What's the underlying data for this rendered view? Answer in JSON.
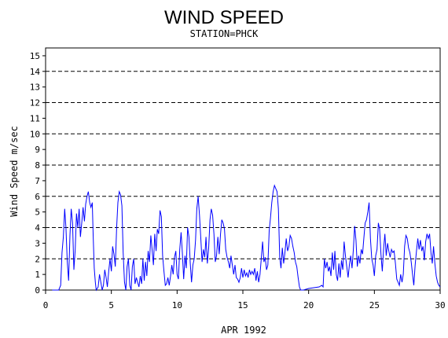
{
  "chart_data": {
    "type": "line",
    "title": "WIND SPEED",
    "subtitle": "STATION=PHCK",
    "xlabel": "APR 1992",
    "ylabel": "Wind Speed m/sec",
    "xlim": [
      0,
      30
    ],
    "ylim": [
      0,
      15.5
    ],
    "x_ticks": [
      0,
      5,
      10,
      15,
      20,
      25,
      30
    ],
    "y_ticks": [
      0,
      1,
      2,
      3,
      4,
      5,
      6,
      7,
      8,
      9,
      10,
      11,
      12,
      13,
      14,
      15
    ],
    "grid_y_dashed": [
      2,
      4,
      6,
      8,
      10,
      12,
      14
    ],
    "colors": {
      "line": "#0000ff",
      "axis": "#000000",
      "grid": "#000000"
    },
    "series": [
      {
        "values": [
          [
            0.5,
            0
          ],
          [
            1.0,
            0
          ],
          [
            1.15,
            0.3
          ],
          [
            1.25,
            2.4
          ],
          [
            1.35,
            3.4
          ],
          [
            1.45,
            5.2
          ],
          [
            1.55,
            4.0
          ],
          [
            1.65,
            1.8
          ],
          [
            1.75,
            0.6
          ],
          [
            1.85,
            3.5
          ],
          [
            1.95,
            5.2
          ],
          [
            2.05,
            4.3
          ],
          [
            2.15,
            1.3
          ],
          [
            2.25,
            2.6
          ],
          [
            2.35,
            4.9
          ],
          [
            2.45,
            4.0
          ],
          [
            2.55,
            5.2
          ],
          [
            2.65,
            3.4
          ],
          [
            2.75,
            4.3
          ],
          [
            2.85,
            5.3
          ],
          [
            2.95,
            4.4
          ],
          [
            3.05,
            5.5
          ],
          [
            3.15,
            6.0
          ],
          [
            3.25,
            6.3
          ],
          [
            3.35,
            5.6
          ],
          [
            3.45,
            5.3
          ],
          [
            3.55,
            5.6
          ],
          [
            3.62,
            3.4
          ],
          [
            3.7,
            1.4
          ],
          [
            3.78,
            0.5
          ],
          [
            3.85,
            0
          ],
          [
            4.0,
            0.2
          ],
          [
            4.1,
            1.0
          ],
          [
            4.2,
            0.5
          ],
          [
            4.3,
            0
          ],
          [
            4.4,
            0.3
          ],
          [
            4.5,
            1.3
          ],
          [
            4.6,
            0.8
          ],
          [
            4.7,
            0.2
          ],
          [
            4.8,
            1.2
          ],
          [
            4.9,
            2.0
          ],
          [
            5.0,
            1.2
          ],
          [
            5.1,
            2.8
          ],
          [
            5.2,
            2.3
          ],
          [
            5.3,
            1.5
          ],
          [
            5.4,
            4.0
          ],
          [
            5.5,
            5.6
          ],
          [
            5.6,
            6.3
          ],
          [
            5.7,
            6.1
          ],
          [
            5.8,
            5.4
          ],
          [
            5.9,
            2.4
          ],
          [
            6.0,
            0.5
          ],
          [
            6.1,
            0
          ],
          [
            6.2,
            1.5
          ],
          [
            6.3,
            2.0
          ],
          [
            6.4,
            0.3
          ],
          [
            6.5,
            0
          ],
          [
            6.6,
            1.5
          ],
          [
            6.7,
            2.0
          ],
          [
            6.8,
            0.4
          ],
          [
            6.9,
            0.8
          ],
          [
            7.0,
            0.5
          ],
          [
            7.1,
            0.2
          ],
          [
            7.2,
            0.9
          ],
          [
            7.3,
            0.4
          ],
          [
            7.4,
            2.0
          ],
          [
            7.5,
            0.6
          ],
          [
            7.6,
            1.8
          ],
          [
            7.7,
            0.9
          ],
          [
            7.8,
            2.5
          ],
          [
            7.9,
            1.8
          ],
          [
            8.0,
            3.5
          ],
          [
            8.1,
            2.6
          ],
          [
            8.2,
            1.6
          ],
          [
            8.3,
            3.6
          ],
          [
            8.4,
            2.5
          ],
          [
            8.5,
            3.9
          ],
          [
            8.6,
            3.6
          ],
          [
            8.7,
            5.1
          ],
          [
            8.8,
            4.7
          ],
          [
            8.9,
            2.2
          ],
          [
            9.0,
            1.2
          ],
          [
            9.1,
            0.3
          ],
          [
            9.2,
            0.4
          ],
          [
            9.3,
            0.8
          ],
          [
            9.4,
            0.3
          ],
          [
            9.5,
            0.9
          ],
          [
            9.6,
            1.6
          ],
          [
            9.7,
            1.0
          ],
          [
            9.8,
            2.1
          ],
          [
            9.9,
            2.5
          ],
          [
            10.0,
            1.0
          ],
          [
            10.1,
            0.7
          ],
          [
            10.2,
            2.6
          ],
          [
            10.3,
            3.7
          ],
          [
            10.4,
            2.4
          ],
          [
            10.5,
            0.7
          ],
          [
            10.6,
            2.2
          ],
          [
            10.7,
            1.4
          ],
          [
            10.8,
            4.0
          ],
          [
            10.9,
            3.4
          ],
          [
            11.0,
            1.7
          ],
          [
            11.1,
            0.5
          ],
          [
            11.2,
            1.6
          ],
          [
            11.3,
            2.0
          ],
          [
            11.4,
            3.2
          ],
          [
            11.5,
            5.2
          ],
          [
            11.6,
            6.0
          ],
          [
            11.7,
            4.8
          ],
          [
            11.8,
            3.3
          ],
          [
            11.9,
            1.8
          ],
          [
            12.0,
            2.6
          ],
          [
            12.1,
            2.1
          ],
          [
            12.2,
            3.4
          ],
          [
            12.3,
            1.7
          ],
          [
            12.4,
            2.7
          ],
          [
            12.5,
            4.5
          ],
          [
            12.6,
            5.2
          ],
          [
            12.7,
            4.8
          ],
          [
            12.8,
            3.6
          ],
          [
            12.9,
            1.8
          ],
          [
            13.0,
            2.2
          ],
          [
            13.1,
            3.4
          ],
          [
            13.2,
            2.3
          ],
          [
            13.3,
            3.6
          ],
          [
            13.4,
            4.5
          ],
          [
            13.5,
            4.3
          ],
          [
            13.6,
            3.9
          ],
          [
            13.7,
            2.6
          ],
          [
            13.8,
            2.1
          ],
          [
            13.9,
            1.8
          ],
          [
            14.0,
            1.4
          ],
          [
            14.1,
            2.2
          ],
          [
            14.2,
            1.6
          ],
          [
            14.3,
            1.0
          ],
          [
            14.4,
            1.6
          ],
          [
            14.5,
            0.8
          ],
          [
            14.6,
            0.7
          ],
          [
            14.7,
            0.5
          ],
          [
            14.8,
            0.8
          ],
          [
            14.9,
            1.4
          ],
          [
            15.0,
            0.8
          ],
          [
            15.1,
            1.3
          ],
          [
            15.2,
            0.9
          ],
          [
            15.3,
            1.1
          ],
          [
            15.4,
            0.8
          ],
          [
            15.5,
            1.3
          ],
          [
            15.6,
            1.0
          ],
          [
            15.7,
            1.2
          ],
          [
            15.8,
            1.0
          ],
          [
            15.9,
            1.4
          ],
          [
            16.0,
            0.6
          ],
          [
            16.1,
            1.2
          ],
          [
            16.2,
            0.5
          ],
          [
            16.3,
            1.0
          ],
          [
            16.4,
            2.0
          ],
          [
            16.5,
            3.1
          ],
          [
            16.6,
            1.8
          ],
          [
            16.7,
            2.1
          ],
          [
            16.8,
            1.3
          ],
          [
            16.9,
            1.6
          ],
          [
            17.0,
            3.8
          ],
          [
            17.1,
            4.6
          ],
          [
            17.2,
            5.6
          ],
          [
            17.3,
            6.3
          ],
          [
            17.4,
            6.7
          ],
          [
            17.5,
            6.5
          ],
          [
            17.6,
            6.3
          ],
          [
            17.7,
            5.2
          ],
          [
            17.8,
            2.1
          ],
          [
            17.9,
            1.4
          ],
          [
            18.0,
            2.7
          ],
          [
            18.1,
            1.7
          ],
          [
            18.2,
            2.4
          ],
          [
            18.3,
            3.3
          ],
          [
            18.4,
            2.5
          ],
          [
            18.5,
            2.8
          ],
          [
            18.6,
            3.5
          ],
          [
            18.7,
            3.3
          ],
          [
            18.8,
            2.8
          ],
          [
            18.9,
            2.4
          ],
          [
            19.0,
            1.8
          ],
          [
            19.1,
            1.5
          ],
          [
            19.2,
            0.8
          ],
          [
            19.3,
            0.2
          ],
          [
            19.4,
            0
          ],
          [
            19.6,
            0
          ],
          [
            20.0,
            0.1
          ],
          [
            20.4,
            0.15
          ],
          [
            20.8,
            0.2
          ],
          [
            21.0,
            0.3
          ],
          [
            21.1,
            0.2
          ],
          [
            21.2,
            2.0
          ],
          [
            21.3,
            1.4
          ],
          [
            21.4,
            1.8
          ],
          [
            21.5,
            1.2
          ],
          [
            21.6,
            1.5
          ],
          [
            21.7,
            0.9
          ],
          [
            21.8,
            2.4
          ],
          [
            21.9,
            1.3
          ],
          [
            22.0,
            2.5
          ],
          [
            22.1,
            1.0
          ],
          [
            22.2,
            0.6
          ],
          [
            22.3,
            1.7
          ],
          [
            22.4,
            0.8
          ],
          [
            22.5,
            1.9
          ],
          [
            22.6,
            1.3
          ],
          [
            22.7,
            3.1
          ],
          [
            22.8,
            2.2
          ],
          [
            22.9,
            1.5
          ],
          [
            23.0,
            0.8
          ],
          [
            23.1,
            1.6
          ],
          [
            23.2,
            2.2
          ],
          [
            23.3,
            1.4
          ],
          [
            23.4,
            2.6
          ],
          [
            23.5,
            4.1
          ],
          [
            23.6,
            3.2
          ],
          [
            23.7,
            1.5
          ],
          [
            23.8,
            2.2
          ],
          [
            23.9,
            1.7
          ],
          [
            24.0,
            2.6
          ],
          [
            24.1,
            2.3
          ],
          [
            24.2,
            3.3
          ],
          [
            24.3,
            4.3
          ],
          [
            24.4,
            4.5
          ],
          [
            24.5,
            5.0
          ],
          [
            24.6,
            5.6
          ],
          [
            24.7,
            3.3
          ],
          [
            24.8,
            2.0
          ],
          [
            24.9,
            1.6
          ],
          [
            25.0,
            0.9
          ],
          [
            25.1,
            2.2
          ],
          [
            25.2,
            2.6
          ],
          [
            25.3,
            4.3
          ],
          [
            25.4,
            3.9
          ],
          [
            25.5,
            2.3
          ],
          [
            25.6,
            1.2
          ],
          [
            25.7,
            2.6
          ],
          [
            25.8,
            3.6
          ],
          [
            25.9,
            2.2
          ],
          [
            26.0,
            3.0
          ],
          [
            26.1,
            2.5
          ],
          [
            26.2,
            2.1
          ],
          [
            26.3,
            2.6
          ],
          [
            26.4,
            2.4
          ],
          [
            26.5,
            2.5
          ],
          [
            26.6,
            1.7
          ],
          [
            26.7,
            0.7
          ],
          [
            26.8,
            0.5
          ],
          [
            26.9,
            0.3
          ],
          [
            27.0,
            1.0
          ],
          [
            27.1,
            0.5
          ],
          [
            27.2,
            1.0
          ],
          [
            27.3,
            2.8
          ],
          [
            27.4,
            3.5
          ],
          [
            27.5,
            3.3
          ],
          [
            27.6,
            2.7
          ],
          [
            27.7,
            2.4
          ],
          [
            27.8,
            1.8
          ],
          [
            27.9,
            1.0
          ],
          [
            28.0,
            0.3
          ],
          [
            28.1,
            1.6
          ],
          [
            28.2,
            2.5
          ],
          [
            28.3,
            3.3
          ],
          [
            28.4,
            2.6
          ],
          [
            28.5,
            3.2
          ],
          [
            28.6,
            2.5
          ],
          [
            28.7,
            2.8
          ],
          [
            28.8,
            1.9
          ],
          [
            28.9,
            3.1
          ],
          [
            29.0,
            3.6
          ],
          [
            29.1,
            3.3
          ],
          [
            29.2,
            3.6
          ],
          [
            29.3,
            2.4
          ],
          [
            29.4,
            1.7
          ],
          [
            29.5,
            2.8
          ],
          [
            29.6,
            1.7
          ],
          [
            29.7,
            0.9
          ],
          [
            29.8,
            0.5
          ],
          [
            29.9,
            0.3
          ],
          [
            30.0,
            0.2
          ]
        ]
      }
    ]
  }
}
